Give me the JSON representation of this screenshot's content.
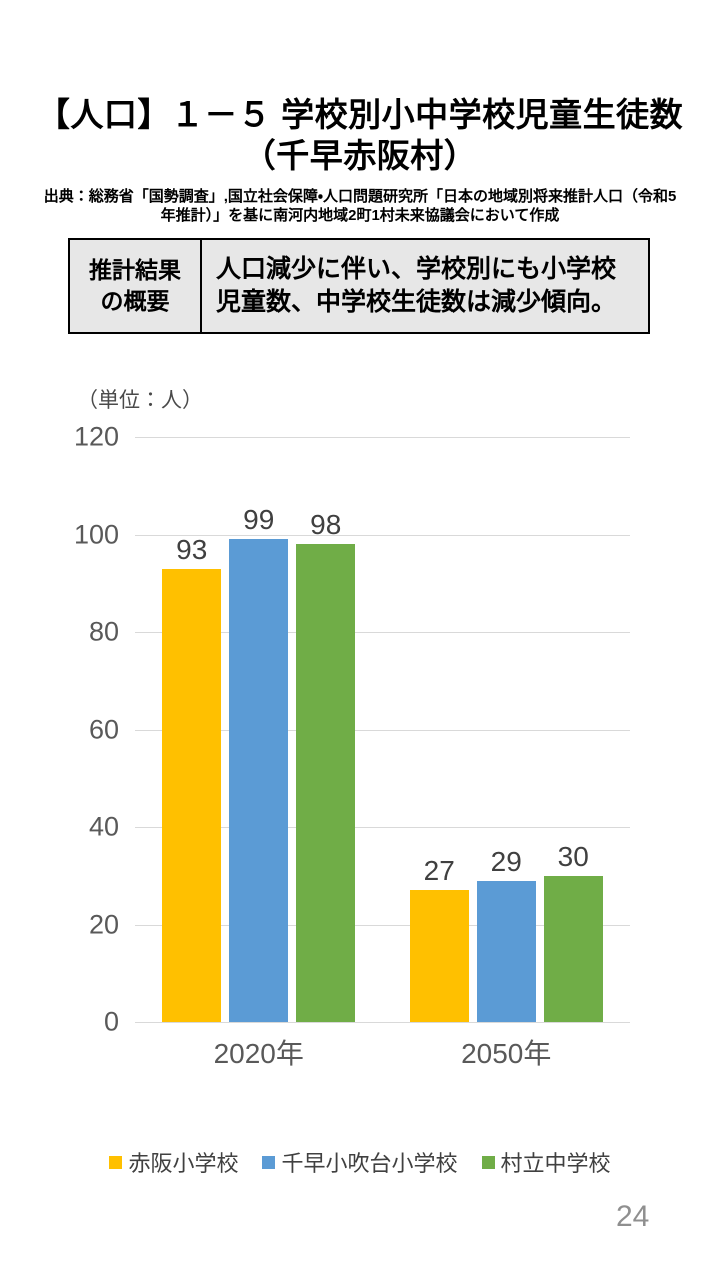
{
  "header": {
    "title_lines": [
      "【人口】１－５ 学校別小中学校児童生徒数",
      "（千早赤阪村）"
    ],
    "source_lines": [
      "出典：総務省「国勢調査」,国立社会保障・人口問題研究所「日本の地域別将来推計人口（令和5",
      "年推計）」を基に南河内地域2町1村未来協議会において作成"
    ]
  },
  "summary": {
    "label": "推計結果\nの概要",
    "text": "人口減少に伴い、学校別にも小学校児童数、中学校生徒数は減少傾向。"
  },
  "chart_data": {
    "type": "bar",
    "title": "",
    "unit_label": "（単位：人）",
    "categories": [
      "2020年",
      "2050年"
    ],
    "series": [
      {
        "name": "赤阪小学校",
        "color": "#FFC000",
        "values": [
          93,
          27
        ]
      },
      {
        "name": "千早小吹台小学校",
        "color": "#5B9BD5",
        "values": [
          99,
          29
        ]
      },
      {
        "name": "村立中学校",
        "color": "#70AD47",
        "values": [
          98,
          30
        ]
      }
    ],
    "ylim": [
      0,
      120
    ],
    "yticks": [
      0,
      20,
      40,
      60,
      80,
      100,
      120
    ],
    "grid": true,
    "gridline_color": "#D9D9D9",
    "legend_position": "bottom"
  },
  "page": {
    "number": "24"
  }
}
